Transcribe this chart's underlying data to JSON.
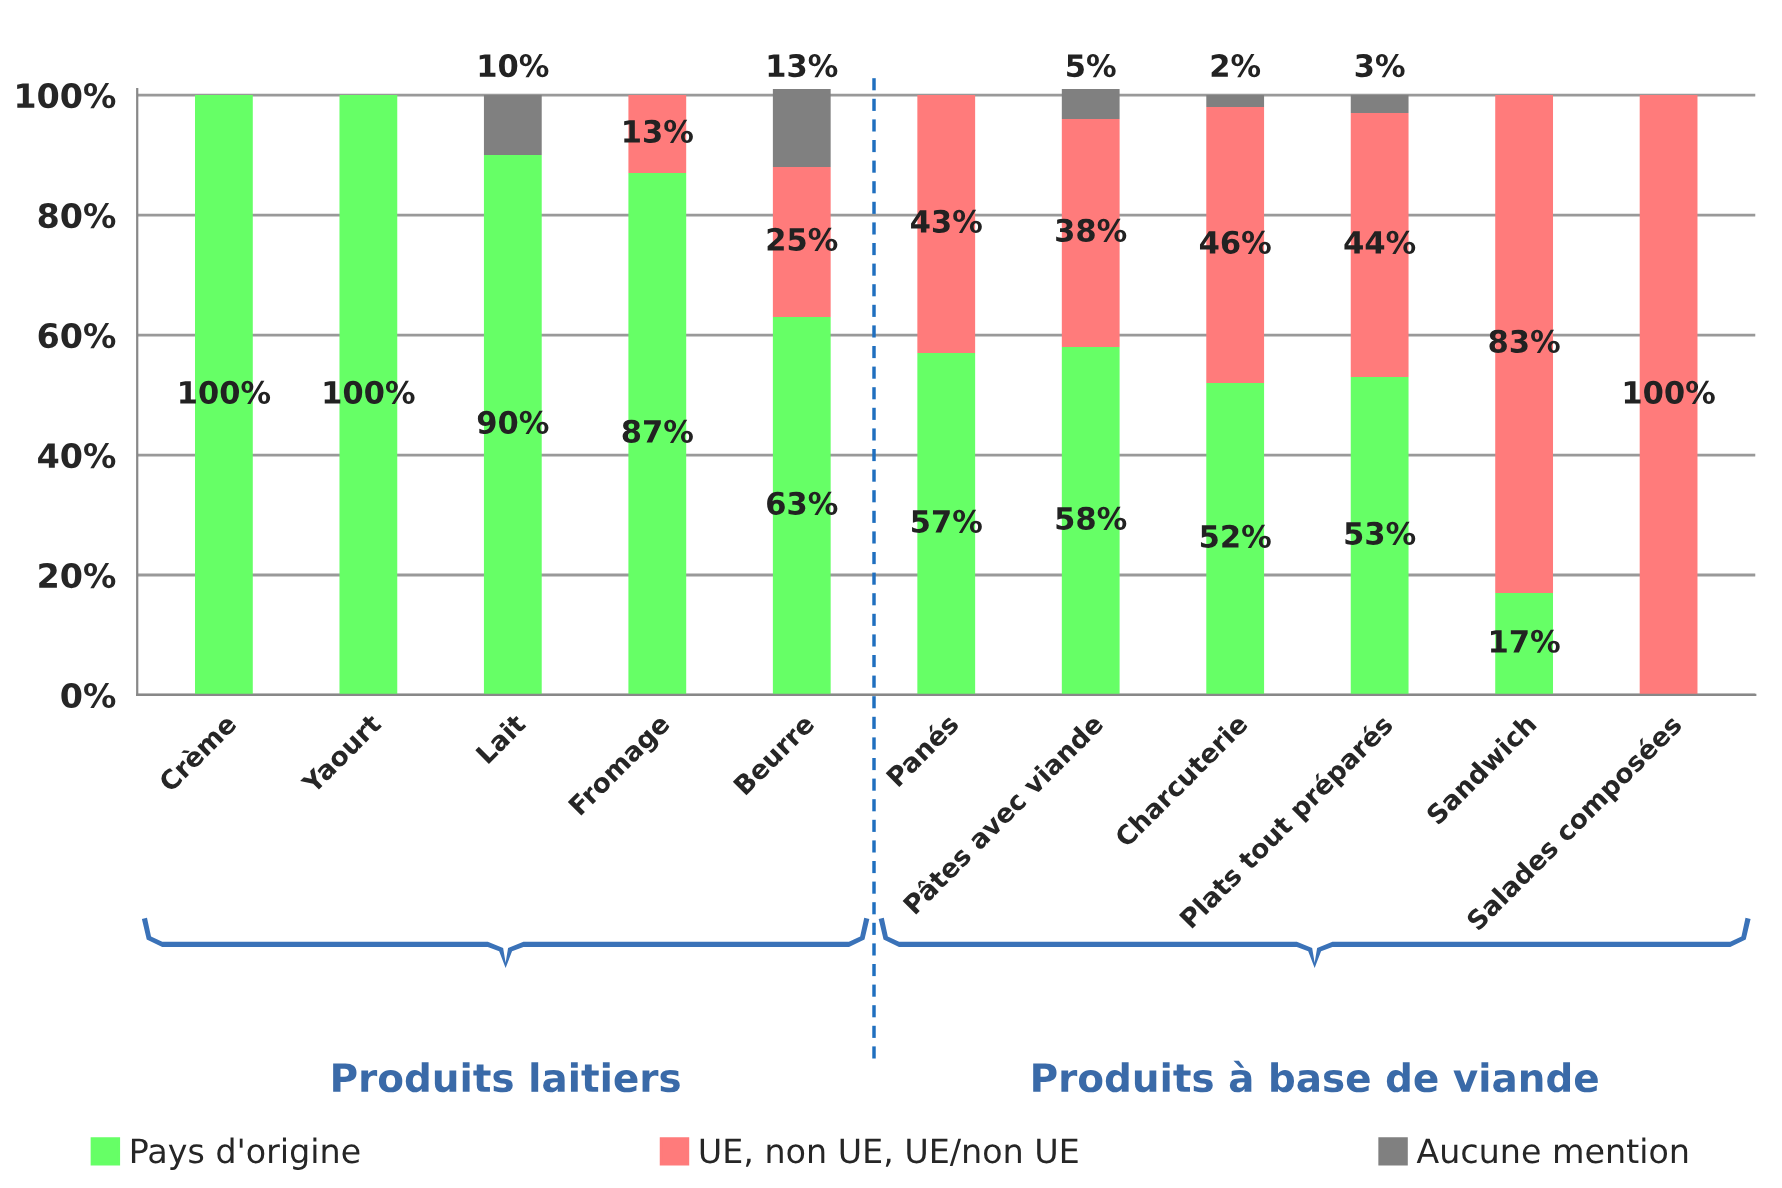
{
  "chart_data": {
    "type": "bar",
    "stacked": true,
    "categories": [
      "Crème",
      "Yaourt",
      "Lait",
      "Fromage",
      "Beurre",
      "Panés",
      "Pâtes avec viande",
      "Charcuterie",
      "Plats tout préparés",
      "Sandwich",
      "Salades composées"
    ],
    "series": [
      {
        "name": "Pays d'origine",
        "color": "#66ff66",
        "values": [
          100,
          100,
          90,
          87,
          63,
          57,
          58,
          52,
          53,
          17,
          0
        ],
        "value_labels": [
          "100%",
          "100%",
          "90%",
          "87%",
          "63%",
          "57%",
          "58%",
          "52%",
          "53%",
          "17%",
          null
        ]
      },
      {
        "name": "UE, non UE, UE/non UE",
        "color": "#ff7b7b",
        "values": [
          0,
          0,
          0,
          13,
          25,
          43,
          38,
          46,
          44,
          83,
          100
        ],
        "value_labels": [
          null,
          null,
          null,
          "13%",
          "25%",
          "43%",
          "38%",
          "46%",
          "44%",
          "83%",
          "100%"
        ]
      },
      {
        "name": "Aucune mention",
        "color": "#808080",
        "values": [
          0,
          0,
          10,
          0,
          13,
          0,
          5,
          2,
          3,
          0,
          0
        ],
        "value_labels": [
          null,
          null,
          "10%",
          null,
          "13%",
          null,
          "5%",
          "2%",
          "3%",
          null,
          null
        ]
      }
    ],
    "ylim": [
      0,
      101
    ],
    "yticks": [
      {
        "value": 0,
        "label": "0%"
      },
      {
        "value": 20,
        "label": "20%"
      },
      {
        "value": 40,
        "label": "40%"
      },
      {
        "value": 60,
        "label": "60%"
      },
      {
        "value": 80,
        "label": "80%"
      },
      {
        "value": 100,
        "label": "100%"
      }
    ],
    "grid": "y",
    "legend": "bottom",
    "annotations": [
      "Produits laitiers",
      "Produits à base de viande"
    ]
  }
}
